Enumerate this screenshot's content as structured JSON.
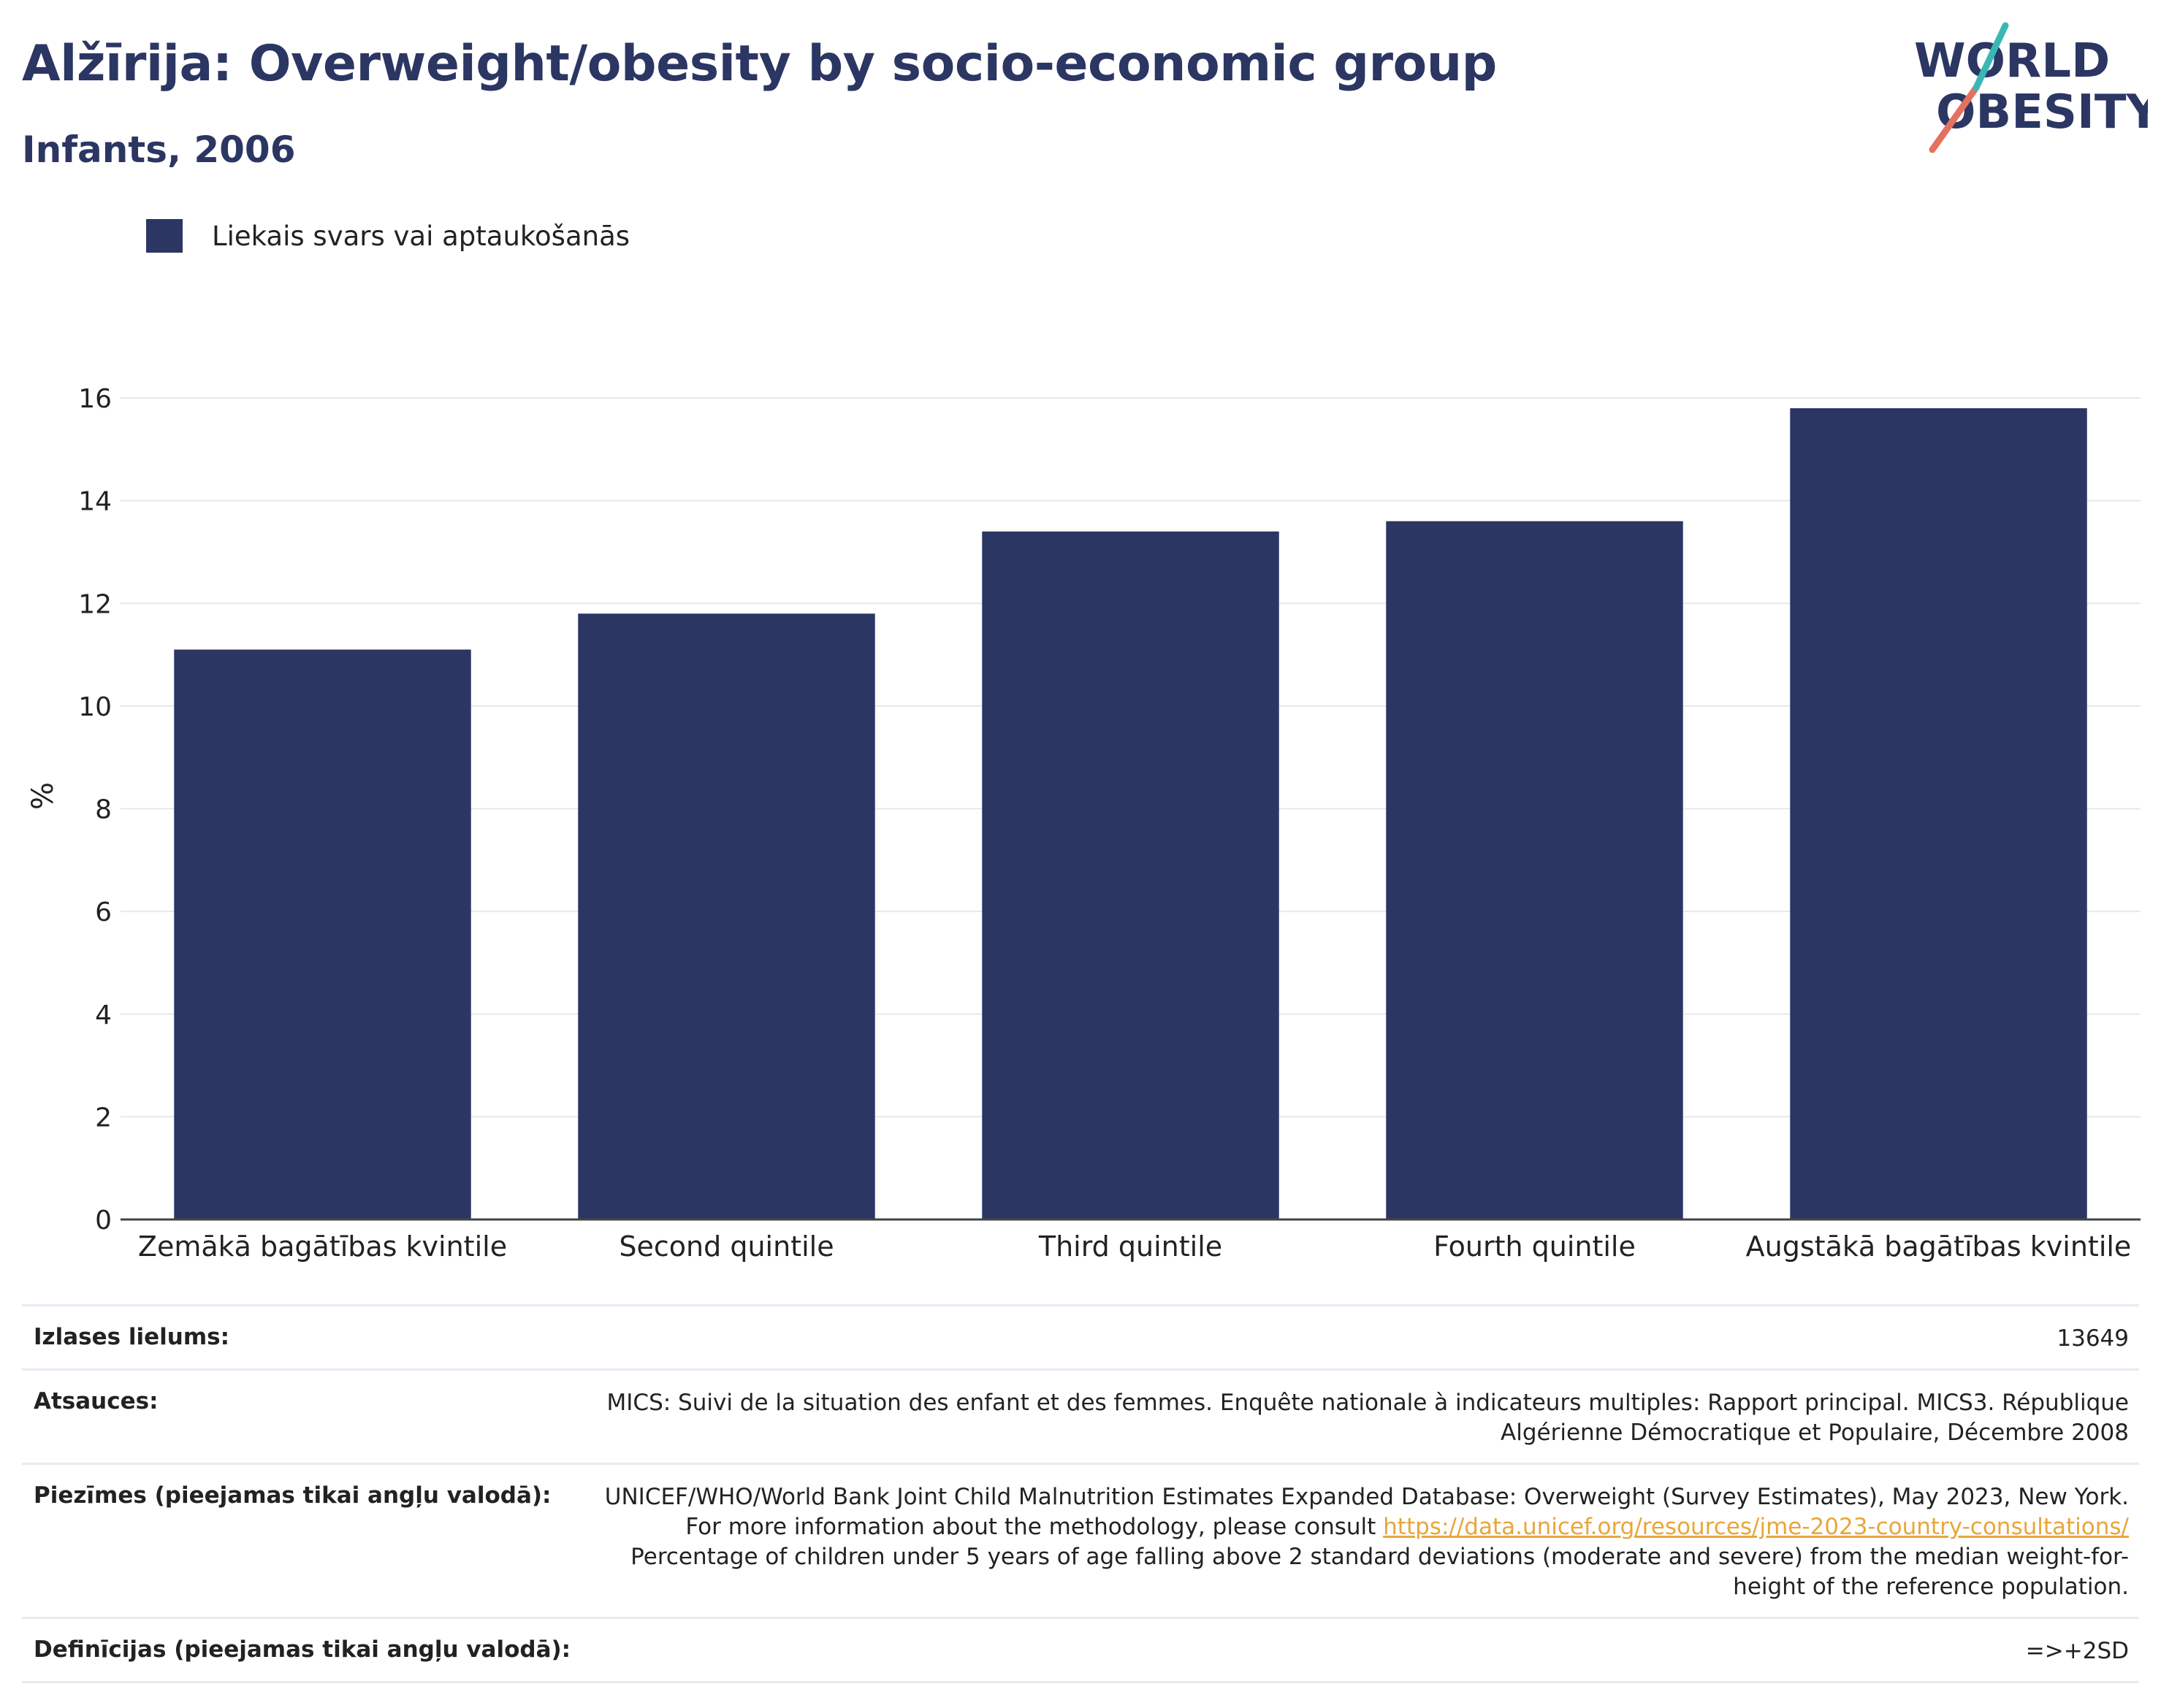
{
  "header": {
    "title": "Alžīrija: Overweight/obesity by socio-economic group",
    "subtitle": "Infants, 2006"
  },
  "logo": {
    "line1": "WORLD",
    "line2": "OBESITY"
  },
  "legend": {
    "label": "Liekais svars vai aptaukošanās",
    "color": "#2b3663"
  },
  "chart_data": {
    "type": "bar",
    "categories": [
      "Zemākā bagātības kvintile",
      "Second quintile",
      "Third quintile",
      "Fourth quintile",
      "Augstākā bagātības kvintile"
    ],
    "series": [
      {
        "name": "Liekais svars vai aptaukošanās",
        "values": [
          11.1,
          11.8,
          13.4,
          13.6,
          15.8
        ],
        "color": "#2b3663"
      }
    ],
    "ylabel": "%",
    "xlabel": "",
    "ylim": [
      0,
      16
    ],
    "yticks": [
      0,
      2,
      4,
      6,
      8,
      10,
      12,
      14,
      16
    ],
    "grid": true
  },
  "table": {
    "sample_size": {
      "label": "Izlases lielums:",
      "value": "13649"
    },
    "references": {
      "label": "Atsauces:",
      "value": "MICS: Suivi de la situation des enfant et des femmes. Enquête nationale à indicateurs multiples: Rapport principal. MICS3. République Algérienne Démocratique et Populaire, Décembre 2008"
    },
    "notes": {
      "label": "Piezīmes (pieejamas tikai angļu valodā):",
      "text_before": "UNICEF/WHO/World Bank Joint Child Malnutrition Estimates Expanded Database: Overweight (Survey Estimates), May 2023, New York. For more information about the methodology, please consult ",
      "link": "https://data.unicef.org/resources/jme-2023-country-consultations/",
      "text_after": " Percentage of children under 5 years of age falling above 2 standard deviations (moderate and severe) from the median weight-for-height of the reference population."
    },
    "definitions": {
      "label": "Definīcijas (pieejamas tikai angļu valodā):",
      "value": "=>+2SD"
    }
  }
}
